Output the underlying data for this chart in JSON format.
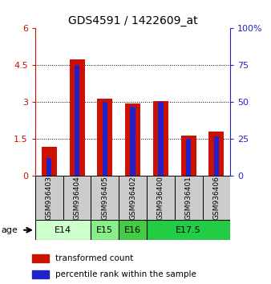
{
  "title": "GDS4591 / 1422609_at",
  "samples": [
    "GSM936403",
    "GSM936404",
    "GSM936405",
    "GSM936402",
    "GSM936400",
    "GSM936401",
    "GSM936406"
  ],
  "transformed_counts": [
    1.2,
    4.75,
    3.15,
    2.95,
    3.05,
    1.65,
    1.8
  ],
  "percentile_ranks_pct": [
    12,
    75,
    50,
    47,
    50,
    25,
    27
  ],
  "ylim_left": [
    0,
    6
  ],
  "ylim_right": [
    0,
    100
  ],
  "yticks_left": [
    0,
    1.5,
    3.0,
    4.5,
    6.0
  ],
  "yticks_right": [
    0,
    25,
    50,
    75,
    100
  ],
  "ytick_labels_left": [
    "0",
    "1.5",
    "3",
    "4.5",
    "6"
  ],
  "ytick_labels_right": [
    "0",
    "25",
    "50",
    "75",
    "100%"
  ],
  "bar_color_red": "#cc1100",
  "bar_color_blue": "#2222cc",
  "bar_width": 0.55,
  "blue_bar_width": 0.18,
  "age_groups": [
    {
      "label": "E14",
      "samples": [
        0,
        1
      ],
      "color": "#ccffcc"
    },
    {
      "label": "E15",
      "samples": [
        2
      ],
      "color": "#88ee88"
    },
    {
      "label": "E16",
      "samples": [
        3
      ],
      "color": "#44cc44"
    },
    {
      "label": "E17.5",
      "samples": [
        4,
        5,
        6
      ],
      "color": "#22cc44"
    }
  ],
  "legend_red_label": "transformed count",
  "legend_blue_label": "percentile rank within the sample",
  "age_label": "age",
  "background_color": "#ffffff",
  "sample_box_color": "#cccccc",
  "plot_bg_color": "#ffffff"
}
